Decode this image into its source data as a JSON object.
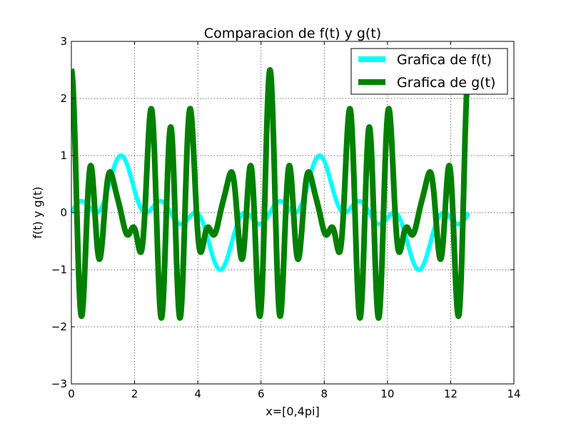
{
  "chart_data": {
    "type": "line",
    "title": "Comparacion de f(t) y g(t)",
    "xlabel": "x=[0,4pi]",
    "ylabel": "f(t) y g(t)",
    "xlim": [
      0,
      14
    ],
    "ylim": [
      -3,
      3
    ],
    "xticks": [
      0,
      2,
      4,
      6,
      8,
      10,
      12,
      14
    ],
    "yticks": [
      -3,
      -2,
      -1,
      0,
      1,
      2,
      3
    ],
    "xtick_labels": [
      "0",
      "2",
      "4",
      "6",
      "8",
      "10",
      "12",
      "14"
    ],
    "ytick_labels": [
      "−3",
      "−2",
      "−1",
      "0",
      "1",
      "2",
      "3"
    ],
    "grid": true,
    "legend_position": "top-right",
    "x_domain": [
      0,
      12.566
    ],
    "series": [
      {
        "name": "Grafica de f(t)",
        "color": "#00ffff",
        "expression": "sin(t)*(1+cos(4t))/2",
        "points": [
          [
            0.0,
            0.0
          ],
          [
            0.2,
            0.17
          ],
          [
            0.4,
            0.37
          ],
          [
            0.6,
            0.26
          ],
          [
            0.8,
            0.09
          ],
          [
            1.0,
            0.05
          ],
          [
            1.2,
            0.29
          ],
          [
            1.4,
            0.76
          ],
          [
            1.6,
            1.0
          ],
          [
            1.8,
            0.8
          ],
          [
            2.0,
            0.36
          ],
          [
            2.2,
            0.04
          ],
          [
            2.4,
            0.02
          ],
          [
            2.6,
            0.19
          ],
          [
            2.8,
            0.32
          ],
          [
            3.0,
            0.14
          ],
          [
            3.2,
            -0.05
          ],
          [
            3.4,
            -0.28
          ],
          [
            3.6,
            -0.36
          ],
          [
            3.8,
            -0.17
          ],
          [
            4.0,
            -0.04
          ],
          [
            4.2,
            -0.18
          ],
          [
            4.4,
            -0.6
          ],
          [
            4.6,
            -0.99
          ],
          [
            4.8,
            -0.92
          ],
          [
            5.0,
            -0.52
          ],
          [
            5.2,
            -0.13
          ],
          [
            5.4,
            0.0
          ],
          [
            5.6,
            -0.19
          ],
          [
            5.8,
            -0.4
          ],
          [
            6.0,
            -0.27
          ],
          [
            6.2,
            -0.03
          ],
          [
            6.4,
            0.12
          ],
          [
            6.6,
            0.32
          ],
          [
            6.8,
            0.3
          ],
          [
            7.0,
            0.11
          ],
          [
            7.2,
            0.12
          ],
          [
            7.4,
            0.56
          ],
          [
            7.6,
            0.97
          ],
          [
            7.8,
            1.0
          ],
          [
            8.0,
            0.63
          ],
          [
            8.2,
            0.18
          ],
          [
            8.4,
            0.0
          ],
          [
            8.6,
            0.18
          ],
          [
            8.8,
            0.38
          ],
          [
            9.0,
            0.21
          ],
          [
            9.2,
            0.02
          ],
          [
            9.4,
            -0.09
          ],
          [
            9.6,
            -0.32
          ],
          [
            9.8,
            -0.32
          ],
          [
            10.0,
            -0.18
          ],
          [
            10.2,
            -0.2
          ],
          [
            10.4,
            -0.48
          ],
          [
            10.6,
            -0.86
          ],
          [
            10.8,
            -0.98
          ],
          [
            11.0,
            -0.74
          ],
          [
            11.2,
            -0.3
          ],
          [
            11.4,
            -0.02
          ],
          [
            11.6,
            -0.13
          ],
          [
            11.8,
            -0.32
          ],
          [
            12.0,
            -0.29
          ],
          [
            12.2,
            -0.15
          ],
          [
            12.4,
            -0.06
          ],
          [
            12.566,
            0.0
          ]
        ]
      },
      {
        "name": "Grafica de g(t)",
        "color": "#008000",
        "expression": "2cos(10t)cos(t)^2 + 0.5cos(5t)",
        "points": [
          [
            0.0,
            2.5
          ],
          [
            0.2,
            -1.0
          ],
          [
            0.4,
            0.52
          ],
          [
            0.6,
            -1.53
          ],
          [
            0.8,
            0.6
          ],
          [
            1.0,
            0.07
          ],
          [
            1.2,
            0.33
          ],
          [
            1.4,
            0.65
          ],
          [
            1.6,
            -0.61
          ],
          [
            1.8,
            0.68
          ],
          [
            2.0,
            -0.03
          ],
          [
            2.2,
            -0.94
          ],
          [
            2.4,
            1.13
          ],
          [
            2.6,
            -1.45
          ],
          [
            2.8,
            2.03
          ],
          [
            3.0,
            0.35
          ],
          [
            3.2,
            1.78
          ],
          [
            3.4,
            -0.93
          ],
          [
            3.6,
            -0.01
          ],
          [
            3.8,
            -0.38
          ],
          [
            4.0,
            0.31
          ],
          [
            4.2,
            -0.12
          ],
          [
            4.4,
            0.39
          ],
          [
            4.6,
            0.21
          ],
          [
            4.8,
            -0.24
          ],
          [
            5.0,
            0.53
          ],
          [
            5.2,
            -1.6
          ],
          [
            5.4,
            0.85
          ],
          [
            5.6,
            -0.86
          ],
          [
            5.8,
            2.05
          ],
          [
            6.0,
            -0.22
          ],
          [
            6.2,
            2.26
          ],
          [
            6.4,
            0.42
          ],
          [
            6.6,
            0.93
          ],
          [
            6.8,
            -1.11
          ],
          [
            7.0,
            0.32
          ],
          [
            7.2,
            -0.09
          ],
          [
            7.4,
            0.26
          ],
          [
            7.6,
            0.06
          ],
          [
            7.8,
            0.55
          ],
          [
            8.0,
            -0.27
          ],
          [
            8.2,
            -0.42
          ],
          [
            8.4,
            0.38
          ],
          [
            8.6,
            -1.0
          ],
          [
            8.8,
            1.28
          ],
          [
            9.0,
            -1.56
          ],
          [
            9.2,
            1.36
          ],
          [
            9.4,
            -2.45
          ],
          [
            9.6,
            1.81
          ],
          [
            9.8,
            -0.76
          ],
          [
            10.0,
            0.96
          ],
          [
            10.2,
            -0.57
          ],
          [
            10.4,
            0.32
          ],
          [
            10.6,
            -0.44
          ],
          [
            10.8,
            0.8
          ],
          [
            11.0,
            0.16
          ],
          [
            11.2,
            0.41
          ],
          [
            11.4,
            1.04
          ],
          [
            11.6,
            -1.05
          ],
          [
            11.8,
            1.04
          ],
          [
            12.0,
            -1.58
          ],
          [
            12.2,
            0.67
          ],
          [
            12.4,
            0.73
          ],
          [
            12.566,
            2.5
          ]
        ]
      }
    ]
  }
}
